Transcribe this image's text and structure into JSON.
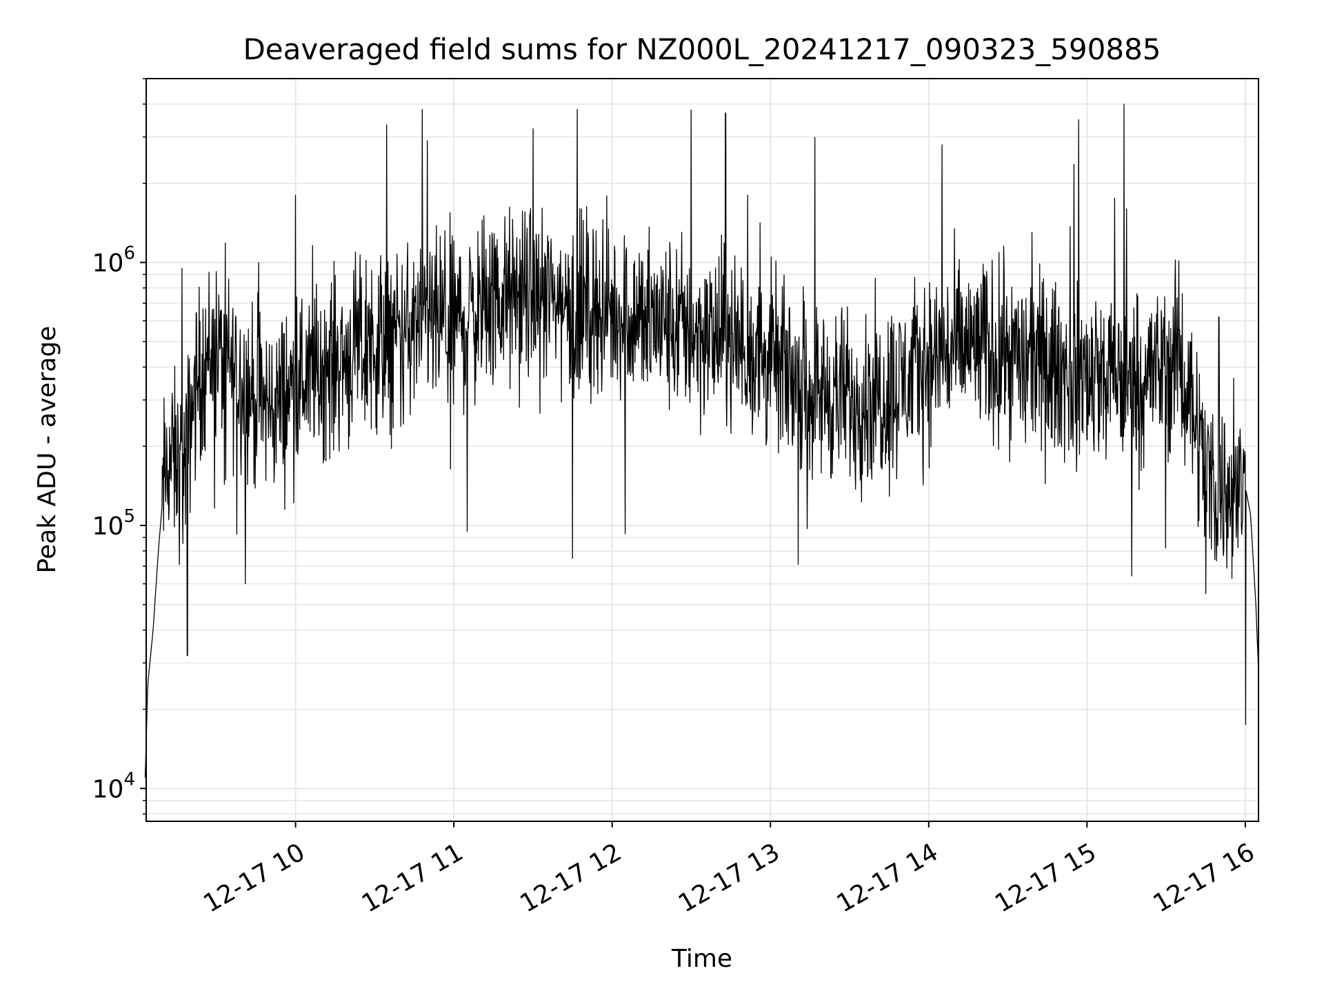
{
  "chart_data": {
    "type": "line",
    "title": "Deaveraged field sums for NZ000L_20241217_090323_590885",
    "xlabel": "Time",
    "ylabel": "Peak ADU - average",
    "yscale": "log",
    "grid": true,
    "line_color": "#000000",
    "grid_color": "#e6e6e6",
    "xlim": [
      "2024-12-17 09:03:23",
      "2024-12-17 16:05:00"
    ],
    "ylim": [
      7500,
      5000000
    ],
    "x_ticks": [
      {
        "value": "2024-12-17 10:00",
        "label": "12-17 10"
      },
      {
        "value": "2024-12-17 11:00",
        "label": "12-17 11"
      },
      {
        "value": "2024-12-17 12:00",
        "label": "12-17 12"
      },
      {
        "value": "2024-12-17 13:00",
        "label": "12-17 13"
      },
      {
        "value": "2024-12-17 14:00",
        "label": "12-17 14"
      },
      {
        "value": "2024-12-17 15:00",
        "label": "12-17 15"
      },
      {
        "value": "2024-12-17 16:00",
        "label": "12-17 16"
      }
    ],
    "y_ticks": [
      {
        "value": 10000,
        "base": "10",
        "exp": "4"
      },
      {
        "value": 100000,
        "base": "10",
        "exp": "5"
      },
      {
        "value": 1000000,
        "base": "10",
        "exp": "6"
      }
    ],
    "series": [
      {
        "x": [
          "2024-12-17 09:03",
          "2024-12-17 09:04",
          "2024-12-17 09:06",
          "2024-12-17 09:08",
          "2024-12-17 09:10",
          "2024-12-17 09:12",
          "2024-12-17 09:15",
          "2024-12-17 09:18",
          "2024-12-17 09:21",
          "2024-12-17 09:24",
          "2024-12-17 09:27",
          "2024-12-17 09:30",
          "2024-12-17 09:35",
          "2024-12-17 09:40",
          "2024-12-17 09:45",
          "2024-12-17 09:50",
          "2024-12-17 09:55",
          "2024-12-17 10:00",
          "2024-12-17 10:15",
          "2024-12-17 10:30",
          "2024-12-17 10:45",
          "2024-12-17 11:00",
          "2024-12-17 11:15",
          "2024-12-17 11:30",
          "2024-12-17 11:45",
          "2024-12-17 12:00",
          "2024-12-17 12:15",
          "2024-12-17 12:30",
          "2024-12-17 12:45",
          "2024-12-17 13:00",
          "2024-12-17 13:15",
          "2024-12-17 13:30",
          "2024-12-17 13:45",
          "2024-12-17 14:00",
          "2024-12-17 14:15",
          "2024-12-17 14:30",
          "2024-12-17 14:45",
          "2024-12-17 15:00",
          "2024-12-17 15:15",
          "2024-12-17 15:30",
          "2024-12-17 15:35",
          "2024-12-17 15:40",
          "2024-12-17 15:45",
          "2024-12-17 15:50",
          "2024-12-17 15:55",
          "2024-12-17 16:00",
          "2024-12-17 16:02",
          "2024-12-17 16:04",
          "2024-12-17 16:05"
        ],
        "y": [
          11000,
          25000,
          40000,
          80000,
          140000,
          180000,
          170000,
          160000,
          300000,
          380000,
          450000,
          450000,
          400000,
          350000,
          300000,
          280000,
          300000,
          350000,
          420000,
          480000,
          550000,
          600000,
          700000,
          750000,
          700000,
          650000,
          600000,
          550000,
          500000,
          420000,
          330000,
          300000,
          320000,
          420000,
          480000,
          450000,
          400000,
          370000,
          350000,
          400000,
          420000,
          300000,
          160000,
          140000,
          130000,
          140000,
          110000,
          50000,
          28000
        ],
        "noise_amplitude_decades": 0.3,
        "spike_values": [
          {
            "x": "2024-12-17 09:17",
            "y": 950000
          },
          {
            "x": "2024-12-17 09:19",
            "y": 32000
          },
          {
            "x": "2024-12-17 09:41",
            "y": 60000
          },
          {
            "x": "2024-12-17 09:46",
            "y": 1000000
          },
          {
            "x": "2024-12-17 10:00",
            "y": 1800000
          },
          {
            "x": "2024-12-17 10:50",
            "y": 2900000
          },
          {
            "x": "2024-12-17 11:05",
            "y": 95000
          },
          {
            "x": "2024-12-17 11:45",
            "y": 75000
          },
          {
            "x": "2024-12-17 12:05",
            "y": 93000
          },
          {
            "x": "2024-12-17 12:30",
            "y": 3800000
          },
          {
            "x": "2024-12-17 12:43",
            "y": 3700000
          },
          {
            "x": "2024-12-17 14:05",
            "y": 2800000
          },
          {
            "x": "2024-12-17 15:14",
            "y": 4000000
          },
          {
            "x": "2024-12-17 15:15",
            "y": 1600000
          },
          {
            "x": "2024-12-17 15:45",
            "y": 55000
          },
          {
            "x": "2024-12-17 15:50",
            "y": 620000
          }
        ]
      }
    ]
  }
}
